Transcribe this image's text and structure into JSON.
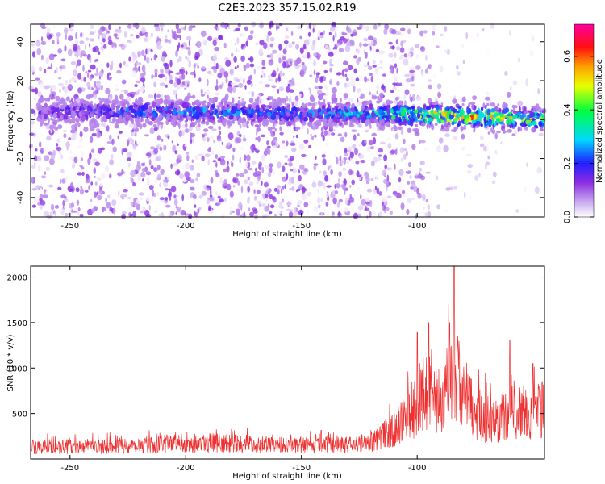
{
  "title": "C2E3.2023.357.15.02.R19",
  "colors": {
    "line": "#ee3030",
    "frame": "#000000"
  },
  "chart_data": [
    {
      "type": "heatmap",
      "xlabel": "Height of straight line (km)",
      "ylabel": "Frequency (Hz)",
      "xlim": [
        -267,
        -45
      ],
      "ylim": [
        -50,
        49
      ],
      "xticks": [
        -250,
        -200,
        -150,
        -100
      ],
      "yticks": [
        -40,
        -20,
        0,
        20,
        40
      ],
      "colorbar": {
        "label": "Normalized spectral amplitude",
        "range": [
          0,
          0.72
        ],
        "ticks": [
          0,
          0.2,
          0.4,
          0.6
        ],
        "colormap": "white-violet-blue-cyan-green-yellow-red-magenta"
      },
      "ridge": {
        "frequency_hz": [
          4,
          4,
          3,
          3,
          2,
          0
        ],
        "at_height_km": [
          -260,
          -200,
          -150,
          -120,
          -90,
          -45
        ],
        "peak_amplitude": [
          0.15,
          0.25,
          0.2,
          0.3,
          0.55,
          0.4
        ]
      },
      "scattered_noise_until_km": -110
    },
    {
      "type": "line",
      "xlabel": "Height of straight line (km)",
      "ylabel": "SNR (10 * v/v)",
      "xlim": [
        -267,
        -45
      ],
      "ylim": [
        0,
        2120
      ],
      "xticks": [
        -250,
        -200,
        -150,
        -100
      ],
      "yticks": [
        500,
        1000,
        1500,
        2000
      ],
      "envelope": {
        "x": [
          -267,
          -250,
          -230,
          -210,
          -190,
          -170,
          -150,
          -130,
          -120,
          -110,
          -105,
          -100,
          -95,
          -90,
          -87,
          -84,
          -80,
          -75,
          -70,
          -65,
          -60,
          -55,
          -50,
          -45
        ],
        "y": [
          150,
          150,
          160,
          185,
          200,
          180,
          170,
          170,
          200,
          350,
          500,
          700,
          850,
          650,
          900,
          1100,
          750,
          550,
          500,
          450,
          550,
          600,
          550,
          600
        ]
      },
      "peaks": [
        {
          "x": -84,
          "y": 2120
        },
        {
          "x": -95,
          "y": 1500
        },
        {
          "x": -86,
          "y": 1500
        },
        {
          "x": -100,
          "y": 1400
        },
        {
          "x": -60,
          "y": 1300
        },
        {
          "x": -50,
          "y": 1050
        }
      ]
    }
  ]
}
